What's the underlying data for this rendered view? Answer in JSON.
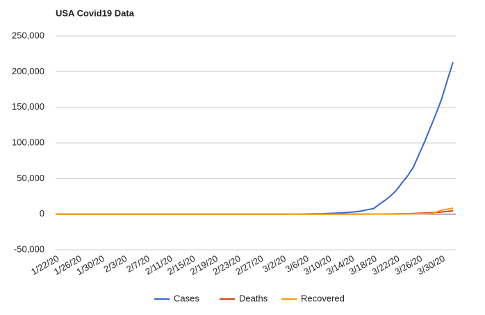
{
  "chart_data": {
    "type": "line",
    "title": "USA Covid19 Data",
    "categories": [
      "1/22/20",
      null,
      null,
      null,
      "1/26/20",
      null,
      null,
      null,
      "1/30/20",
      null,
      null,
      null,
      "2/3/20",
      null,
      null,
      null,
      "2/7/20",
      null,
      null,
      null,
      "2/11/20",
      null,
      null,
      null,
      "2/15/20",
      null,
      null,
      null,
      "2/19/20",
      null,
      null,
      null,
      "2/23/20",
      null,
      null,
      null,
      "2/27/20",
      null,
      null,
      null,
      "3/2/20",
      null,
      null,
      null,
      "3/6/20",
      null,
      null,
      null,
      "3/10/20",
      null,
      null,
      null,
      "3/14/20",
      null,
      null,
      null,
      "3/18/20",
      null,
      null,
      null,
      "3/22/20",
      null,
      null,
      null,
      "3/26/20",
      null,
      null,
      null,
      "3/30/20",
      null,
      null
    ],
    "series": [
      {
        "name": "Cases",
        "color": "#3366cc",
        "values": [
          1,
          1,
          2,
          2,
          5,
          5,
          5,
          5,
          5,
          7,
          8,
          8,
          11,
          11,
          11,
          11,
          11,
          11,
          11,
          11,
          12,
          12,
          13,
          13,
          13,
          13,
          13,
          13,
          13,
          13,
          15,
          15,
          15,
          51,
          51,
          57,
          58,
          60,
          68,
          74,
          98,
          118,
          149,
          217,
          262,
          402,
          518,
          583,
          959,
          1281,
          1663,
          2179,
          2727,
          3499,
          4632,
          6421,
          7783,
          13747,
          19273,
          25600,
          33276,
          43847,
          53740,
          65778,
          83836,
          101657,
          121478,
          140886,
          161807,
          188172,
          213372
        ]
      },
      {
        "name": "Deaths",
        "color": "#dc3912",
        "values": [
          0,
          0,
          0,
          0,
          0,
          0,
          0,
          0,
          0,
          0,
          0,
          0,
          0,
          0,
          0,
          0,
          0,
          0,
          0,
          0,
          0,
          0,
          0,
          0,
          0,
          0,
          0,
          0,
          0,
          0,
          0,
          0,
          0,
          0,
          0,
          0,
          0,
          0,
          1,
          1,
          6,
          7,
          11,
          12,
          14,
          17,
          21,
          22,
          28,
          36,
          40,
          47,
          54,
          63,
          85,
          108,
          118,
          200,
          244,
          307,
          427,
          552,
          706,
          942,
          1209,
          1581,
          2026,
          2467,
          2978,
          3873,
          4757
        ]
      },
      {
        "name": "Recovered",
        "color": "#ff9900",
        "values": [
          0,
          0,
          0,
          0,
          0,
          0,
          0,
          0,
          0,
          0,
          0,
          0,
          0,
          0,
          0,
          0,
          0,
          0,
          0,
          0,
          0,
          0,
          0,
          0,
          0,
          0,
          0,
          0,
          0,
          0,
          5,
          5,
          5,
          5,
          5,
          5,
          6,
          6,
          7,
          7,
          7,
          7,
          7,
          7,
          7,
          7,
          7,
          7,
          8,
          8,
          8,
          12,
          12,
          12,
          17,
          17,
          106,
          108,
          147,
          176,
          178,
          348,
          361,
          361,
          681,
          869,
          1072,
          2665,
          5644,
          7024,
          8474
        ]
      }
    ],
    "ylim": [
      -50000,
      250000
    ],
    "yticks": [
      {
        "value": -50000,
        "label": "-50,000"
      },
      0,
      {
        "value": 50000,
        "label": "50,000"
      },
      {
        "value": 100000,
        "label": "100,000"
      },
      {
        "value": 150000,
        "label": "150,000"
      },
      {
        "value": 200000,
        "label": "200,000"
      },
      {
        "value": 250000,
        "label": "250,000"
      }
    ],
    "grid": true,
    "legend": "bottom"
  }
}
